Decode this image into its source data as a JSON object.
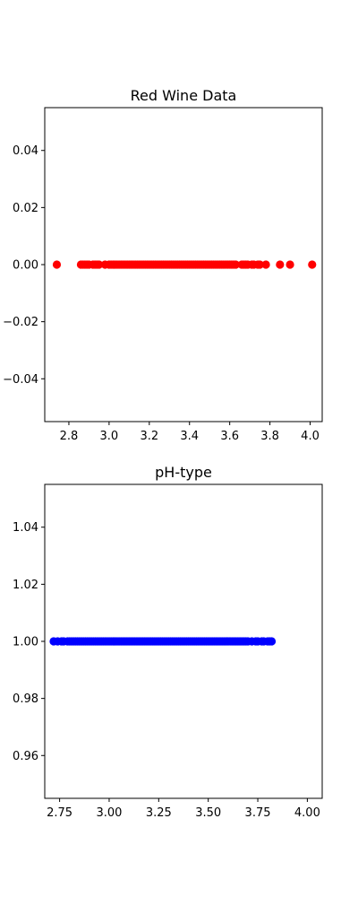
{
  "chart_data": [
    {
      "type": "scatter",
      "title": "Red Wine Data",
      "xlabel": "",
      "ylabel": "",
      "xlim": [
        2.68,
        4.06
      ],
      "ylim": [
        -0.055,
        0.055
      ],
      "xticks": [
        2.8,
        3.0,
        3.2,
        3.4,
        3.6,
        3.8,
        4.0
      ],
      "xtick_labels": [
        "2.8",
        "3.0",
        "3.2",
        "3.4",
        "3.6",
        "3.8",
        "4.0"
      ],
      "yticks": [
        0.04,
        0.02,
        0.0,
        -0.02,
        -0.04
      ],
      "ytick_labels": [
        "0.04",
        "0.02",
        "0.00",
        "−0.02",
        "−0.04"
      ],
      "grid": false,
      "series": [
        {
          "color": "#ff0000",
          "x": [
            2.74,
            2.86,
            2.87,
            2.88,
            2.89,
            2.9,
            2.92,
            2.93,
            2.94,
            2.95,
            2.98,
            3.0,
            3.01,
            3.02,
            3.03,
            3.04,
            3.05,
            3.06,
            3.07,
            3.08,
            3.09,
            3.1,
            3.11,
            3.12,
            3.13,
            3.14,
            3.15,
            3.16,
            3.17,
            3.18,
            3.19,
            3.2,
            3.21,
            3.22,
            3.23,
            3.24,
            3.25,
            3.26,
            3.27,
            3.28,
            3.29,
            3.3,
            3.31,
            3.32,
            3.33,
            3.34,
            3.35,
            3.36,
            3.37,
            3.38,
            3.39,
            3.4,
            3.41,
            3.42,
            3.43,
            3.44,
            3.45,
            3.46,
            3.47,
            3.48,
            3.49,
            3.5,
            3.51,
            3.52,
            3.53,
            3.54,
            3.55,
            3.56,
            3.57,
            3.58,
            3.59,
            3.6,
            3.61,
            3.62,
            3.63,
            3.66,
            3.67,
            3.68,
            3.69,
            3.71,
            3.72,
            3.74,
            3.75,
            3.78,
            3.85,
            3.9,
            4.01
          ],
          "y": [
            0,
            0,
            0,
            0,
            0,
            0,
            0,
            0,
            0,
            0,
            0,
            0,
            0,
            0,
            0,
            0,
            0,
            0,
            0,
            0,
            0,
            0,
            0,
            0,
            0,
            0,
            0,
            0,
            0,
            0,
            0,
            0,
            0,
            0,
            0,
            0,
            0,
            0,
            0,
            0,
            0,
            0,
            0,
            0,
            0,
            0,
            0,
            0,
            0,
            0,
            0,
            0,
            0,
            0,
            0,
            0,
            0,
            0,
            0,
            0,
            0,
            0,
            0,
            0,
            0,
            0,
            0,
            0,
            0,
            0,
            0,
            0,
            0,
            0,
            0,
            0,
            0,
            0,
            0,
            0,
            0,
            0,
            0,
            0,
            0,
            0,
            0
          ]
        }
      ]
    },
    {
      "type": "scatter",
      "title": "pH-type",
      "xlabel": "",
      "ylabel": "",
      "xlim": [
        2.675,
        4.075
      ],
      "ylim": [
        0.945,
        1.055
      ],
      "xticks": [
        2.75,
        3.0,
        3.25,
        3.5,
        3.75,
        4.0
      ],
      "xtick_labels": [
        "2.75",
        "3.00",
        "3.25",
        "3.50",
        "3.75",
        "4.00"
      ],
      "yticks": [
        1.04,
        1.02,
        1.0,
        0.98,
        0.96
      ],
      "ytick_labels": [
        "1.04",
        "1.02",
        "1.00",
        "0.98",
        "0.96"
      ],
      "grid": false,
      "series": [
        {
          "color": "#0000ff",
          "x": [
            2.72,
            2.74,
            2.76,
            2.77,
            2.79,
            2.8,
            2.81,
            2.82,
            2.83,
            2.84,
            2.85,
            2.86,
            2.87,
            2.88,
            2.89,
            2.9,
            2.91,
            2.92,
            2.93,
            2.94,
            2.95,
            2.96,
            2.97,
            2.98,
            2.99,
            3.0,
            3.01,
            3.02,
            3.03,
            3.04,
            3.05,
            3.06,
            3.07,
            3.08,
            3.09,
            3.1,
            3.11,
            3.12,
            3.13,
            3.14,
            3.15,
            3.16,
            3.17,
            3.18,
            3.19,
            3.2,
            3.21,
            3.22,
            3.23,
            3.24,
            3.25,
            3.26,
            3.27,
            3.28,
            3.29,
            3.3,
            3.31,
            3.32,
            3.33,
            3.34,
            3.35,
            3.36,
            3.37,
            3.38,
            3.39,
            3.4,
            3.41,
            3.42,
            3.43,
            3.44,
            3.45,
            3.46,
            3.47,
            3.48,
            3.49,
            3.5,
            3.51,
            3.52,
            3.53,
            3.54,
            3.55,
            3.56,
            3.57,
            3.58,
            3.59,
            3.6,
            3.61,
            3.62,
            3.63,
            3.64,
            3.65,
            3.66,
            3.67,
            3.68,
            3.69,
            3.7,
            3.72,
            3.74,
            3.75,
            3.77,
            3.78,
            3.8,
            3.81,
            3.82
          ],
          "y": [
            1,
            1,
            1,
            1,
            1,
            1,
            1,
            1,
            1,
            1,
            1,
            1,
            1,
            1,
            1,
            1,
            1,
            1,
            1,
            1,
            1,
            1,
            1,
            1,
            1,
            1,
            1,
            1,
            1,
            1,
            1,
            1,
            1,
            1,
            1,
            1,
            1,
            1,
            1,
            1,
            1,
            1,
            1,
            1,
            1,
            1,
            1,
            1,
            1,
            1,
            1,
            1,
            1,
            1,
            1,
            1,
            1,
            1,
            1,
            1,
            1,
            1,
            1,
            1,
            1,
            1,
            1,
            1,
            1,
            1,
            1,
            1,
            1,
            1,
            1,
            1,
            1,
            1,
            1,
            1,
            1,
            1,
            1,
            1,
            1,
            1,
            1,
            1,
            1,
            1,
            1,
            1,
            1,
            1,
            1,
            1,
            1,
            1,
            1,
            1,
            1,
            1,
            1,
            1
          ]
        }
      ]
    }
  ]
}
